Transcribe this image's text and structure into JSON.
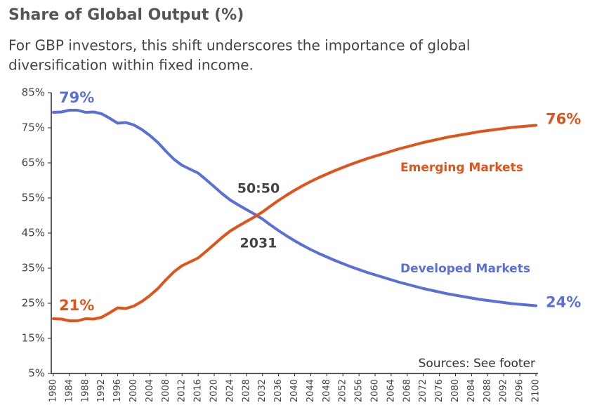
{
  "chart_data": {
    "type": "line",
    "title": "Share of Global Output (%)",
    "subtitle": [
      "For GBP investors, this shift underscores the importance of global",
      "diversification within fixed income."
    ],
    "source_note": "Sources: See footer",
    "crossover": {
      "label": "50:50",
      "year": 2031
    },
    "x": [
      1980,
      1982,
      1984,
      1986,
      1988,
      1990,
      1992,
      1994,
      1996,
      1998,
      2000,
      2002,
      2004,
      2006,
      2008,
      2010,
      2012,
      2014,
      2016,
      2018,
      2020,
      2022,
      2024,
      2026,
      2028,
      2030,
      2032,
      2034,
      2036,
      2038,
      2040,
      2042,
      2044,
      2046,
      2048,
      2050,
      2052,
      2054,
      2056,
      2058,
      2060,
      2062,
      2064,
      2066,
      2068,
      2070,
      2072,
      2074,
      2076,
      2078,
      2080,
      2082,
      2084,
      2086,
      2088,
      2090,
      2092,
      2094,
      2096,
      2098,
      2100
    ],
    "series": [
      {
        "name": "Developed Markets",
        "color": "#5a6fd8",
        "start_label": "79%",
        "end_label": "24%",
        "values": [
          79.4,
          79.5,
          80,
          80,
          79.4,
          79.5,
          79,
          77.7,
          76.3,
          76.5,
          75.8,
          74.5,
          72.8,
          70.8,
          68.3,
          66,
          64.3,
          63.2,
          62.1,
          60.2,
          58.2,
          56.2,
          54.4,
          53,
          51.7,
          50.4,
          49.0,
          47.3,
          45.7,
          44.2,
          42.8,
          41.5,
          40.3,
          39.2,
          38.2,
          37.2,
          36.3,
          35.4,
          34.6,
          33.8,
          33.1,
          32.4,
          31.7,
          31.0,
          30.4,
          29.8,
          29.2,
          28.7,
          28.2,
          27.7,
          27.3,
          26.9,
          26.5,
          26.1,
          25.8,
          25.5,
          25.2,
          24.9,
          24.7,
          24.5,
          24.3
        ]
      },
      {
        "name": "Emerging Markets",
        "color": "#e0531a",
        "start_label": "21%",
        "end_label": "76%",
        "values": [
          20.6,
          20.5,
          20,
          20,
          20.6,
          20.5,
          21,
          22.3,
          23.7,
          23.5,
          24.2,
          25.5,
          27.2,
          29.2,
          31.7,
          34,
          35.7,
          36.8,
          37.9,
          39.8,
          41.8,
          43.8,
          45.6,
          47,
          48.3,
          49.6,
          51,
          52.7,
          54.3,
          55.8,
          57.2,
          58.5,
          59.7,
          60.8,
          61.8,
          62.8,
          63.7,
          64.6,
          65.4,
          66.2,
          66.9,
          67.6,
          68.3,
          69,
          69.6,
          70.2,
          70.8,
          71.3,
          71.8,
          72.3,
          72.7,
          73.1,
          73.5,
          73.9,
          74.2,
          74.5,
          74.8,
          75.1,
          75.3,
          75.5,
          75.7
        ]
      }
    ],
    "xlim": [
      1980,
      2100
    ],
    "xticks": [
      1980,
      1984,
      1988,
      1992,
      1996,
      2000,
      2004,
      2008,
      2012,
      2016,
      2020,
      2024,
      2028,
      2032,
      2036,
      2040,
      2044,
      2048,
      2052,
      2056,
      2060,
      2064,
      2068,
      2072,
      2076,
      2080,
      2084,
      2088,
      2092,
      2096,
      2100
    ],
    "ylim": [
      5,
      85
    ],
    "yticks": [
      {
        "value": 5,
        "label": "5%"
      },
      {
        "value": 15,
        "label": "15%"
      },
      {
        "value": 25,
        "label": "25%"
      },
      {
        "value": 35,
        "label": "35%"
      },
      {
        "value": 45,
        "label": "45%"
      },
      {
        "value": 55,
        "label": "55%"
      },
      {
        "value": 65,
        "label": "65%"
      },
      {
        "value": 75,
        "label": "75%"
      },
      {
        "value": 85,
        "label": "85%"
      }
    ],
    "grid": false
  }
}
